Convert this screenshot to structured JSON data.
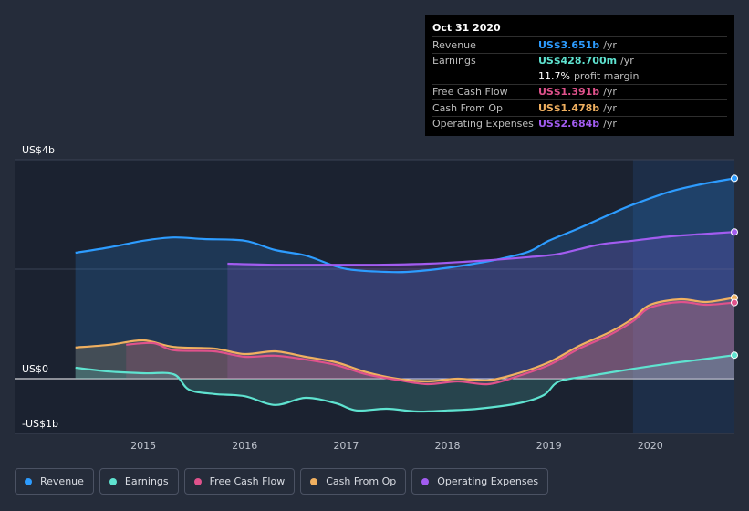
{
  "tooltip": {
    "date": "Oct 31 2020",
    "rows": [
      {
        "label": "Revenue",
        "value": "US$3.651b",
        "unit": "/yr",
        "color": "#2d9cff"
      },
      {
        "label": "Earnings",
        "value": "US$428.700m",
        "unit": "/yr",
        "color": "#5fe3d0"
      },
      {
        "label": "",
        "value": "11.7%",
        "unit": "profit margin",
        "color": "#ffffff"
      },
      {
        "label": "Free Cash Flow",
        "value": "US$1.391b",
        "unit": "/yr",
        "color": "#e0528c"
      },
      {
        "label": "Cash From Op",
        "value": "US$1.478b",
        "unit": "/yr",
        "color": "#f0b060"
      },
      {
        "label": "Operating Expenses",
        "value": "US$2.684b",
        "unit": "/yr",
        "color": "#a25cf0"
      }
    ]
  },
  "legend": [
    {
      "label": "Revenue",
      "color": "#2d9cff"
    },
    {
      "label": "Earnings",
      "color": "#5fe3d0"
    },
    {
      "label": "Free Cash Flow",
      "color": "#e0528c"
    },
    {
      "label": "Cash From Op",
      "color": "#f0b060"
    },
    {
      "label": "Operating Expenses",
      "color": "#a25cf0"
    }
  ],
  "chart_data": {
    "type": "line",
    "y_tick_labels": [
      {
        "value": 4,
        "label": "US$4b"
      },
      {
        "value": 0,
        "label": "US$0"
      },
      {
        "value": -1,
        "label": "-US$1b"
      }
    ],
    "x_tick_labels": [
      {
        "value": 2015.0,
        "label": "2015"
      },
      {
        "value": 2016.0,
        "label": "2016"
      },
      {
        "value": 2017.0,
        "label": "2017"
      },
      {
        "value": 2018.0,
        "label": "2018"
      },
      {
        "value": 2019.0,
        "label": "2019"
      },
      {
        "value": 2020.0,
        "label": "2020"
      }
    ],
    "xlim": [
      2013.73,
      2020.83
    ],
    "ylim": [
      -1.0,
      4.0
    ],
    "highlight_start": 2019.83,
    "series": [
      {
        "name": "Revenue",
        "color": "#2d9cff",
        "points": [
          [
            2014.33,
            2.3
          ],
          [
            2014.67,
            2.4
          ],
          [
            2015.0,
            2.52
          ],
          [
            2015.3,
            2.58
          ],
          [
            2015.6,
            2.55
          ],
          [
            2016.0,
            2.52
          ],
          [
            2016.3,
            2.35
          ],
          [
            2016.6,
            2.25
          ],
          [
            2016.9,
            2.05
          ],
          [
            2017.1,
            1.98
          ],
          [
            2017.4,
            1.95
          ],
          [
            2017.6,
            1.95
          ],
          [
            2017.9,
            2.0
          ],
          [
            2018.2,
            2.08
          ],
          [
            2018.5,
            2.18
          ],
          [
            2018.8,
            2.32
          ],
          [
            2019.0,
            2.52
          ],
          [
            2019.3,
            2.75
          ],
          [
            2019.6,
            3.0
          ],
          [
            2019.83,
            3.18
          ],
          [
            2020.2,
            3.42
          ],
          [
            2020.5,
            3.55
          ],
          [
            2020.83,
            3.66
          ]
        ]
      },
      {
        "name": "Earnings",
        "color": "#5fe3d0",
        "points": [
          [
            2014.33,
            0.2
          ],
          [
            2014.67,
            0.13
          ],
          [
            2015.0,
            0.1
          ],
          [
            2015.3,
            0.08
          ],
          [
            2015.45,
            -0.2
          ],
          [
            2015.7,
            -0.28
          ],
          [
            2016.0,
            -0.32
          ],
          [
            2016.3,
            -0.48
          ],
          [
            2016.6,
            -0.35
          ],
          [
            2016.9,
            -0.45
          ],
          [
            2017.1,
            -0.58
          ],
          [
            2017.4,
            -0.55
          ],
          [
            2017.7,
            -0.6
          ],
          [
            2018.0,
            -0.58
          ],
          [
            2018.3,
            -0.55
          ],
          [
            2018.7,
            -0.45
          ],
          [
            2018.95,
            -0.3
          ],
          [
            2019.1,
            -0.05
          ],
          [
            2019.4,
            0.05
          ],
          [
            2019.83,
            0.18
          ],
          [
            2020.2,
            0.28
          ],
          [
            2020.5,
            0.35
          ],
          [
            2020.83,
            0.43
          ]
        ]
      },
      {
        "name": "Free Cash Flow",
        "color": "#e0528c",
        "points": [
          [
            2014.83,
            0.62
          ],
          [
            2015.1,
            0.65
          ],
          [
            2015.3,
            0.52
          ],
          [
            2015.7,
            0.5
          ],
          [
            2016.0,
            0.4
          ],
          [
            2016.3,
            0.42
          ],
          [
            2016.6,
            0.35
          ],
          [
            2016.9,
            0.25
          ],
          [
            2017.2,
            0.08
          ],
          [
            2017.5,
            -0.02
          ],
          [
            2017.8,
            -0.1
          ],
          [
            2018.1,
            -0.05
          ],
          [
            2018.4,
            -0.1
          ],
          [
            2018.7,
            0.05
          ],
          [
            2019.0,
            0.25
          ],
          [
            2019.3,
            0.55
          ],
          [
            2019.6,
            0.8
          ],
          [
            2019.83,
            1.05
          ],
          [
            2020.0,
            1.3
          ],
          [
            2020.3,
            1.4
          ],
          [
            2020.55,
            1.35
          ],
          [
            2020.83,
            1.39
          ]
        ]
      },
      {
        "name": "Cash From Op",
        "color": "#f0b060",
        "points": [
          [
            2014.33,
            0.57
          ],
          [
            2014.67,
            0.62
          ],
          [
            2015.0,
            0.7
          ],
          [
            2015.3,
            0.58
          ],
          [
            2015.7,
            0.55
          ],
          [
            2016.0,
            0.45
          ],
          [
            2016.3,
            0.5
          ],
          [
            2016.6,
            0.4
          ],
          [
            2016.9,
            0.3
          ],
          [
            2017.2,
            0.12
          ],
          [
            2017.5,
            0.0
          ],
          [
            2017.8,
            -0.05
          ],
          [
            2018.1,
            0.0
          ],
          [
            2018.4,
            -0.03
          ],
          [
            2018.7,
            0.1
          ],
          [
            2019.0,
            0.3
          ],
          [
            2019.3,
            0.6
          ],
          [
            2019.6,
            0.85
          ],
          [
            2019.83,
            1.1
          ],
          [
            2020.0,
            1.35
          ],
          [
            2020.3,
            1.45
          ],
          [
            2020.55,
            1.4
          ],
          [
            2020.83,
            1.48
          ]
        ]
      },
      {
        "name": "Operating Expenses",
        "color": "#a25cf0",
        "points": [
          [
            2015.83,
            2.1
          ],
          [
            2016.3,
            2.08
          ],
          [
            2016.8,
            2.08
          ],
          [
            2017.3,
            2.08
          ],
          [
            2017.8,
            2.1
          ],
          [
            2018.3,
            2.15
          ],
          [
            2018.8,
            2.22
          ],
          [
            2019.1,
            2.28
          ],
          [
            2019.5,
            2.45
          ],
          [
            2019.83,
            2.52
          ],
          [
            2020.2,
            2.6
          ],
          [
            2020.5,
            2.64
          ],
          [
            2020.83,
            2.68
          ]
        ]
      }
    ]
  }
}
